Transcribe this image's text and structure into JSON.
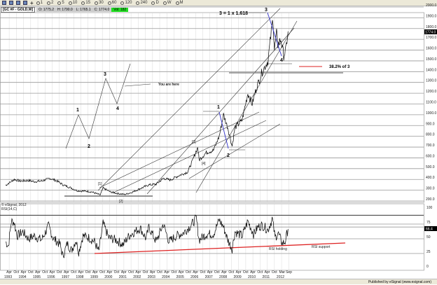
{
  "toolbar": {
    "intervals": [
      "1",
      "2",
      "5",
      "10",
      "15",
      "30",
      "60",
      "120",
      "240",
      "D",
      "W",
      "M"
    ]
  },
  "legend": {
    "symbol": "[GC #F - GOLD,W]",
    "open": "O: 1775.2",
    "high": "H: 1790.0",
    "low": "L: 1765.1",
    "close": "C: 1774.0",
    "volume": "Vol: 182"
  },
  "price_panel": {
    "last_price": "1774.0",
    "copyright": "© eSignal, 2012",
    "annotations": {
      "fib_label": "3 = 1 x 1.618",
      "w1": "1",
      "w2": "2",
      "w3": "3",
      "w4": "4",
      "retrace_label": "38.2% of 3",
      "s1": "[1]",
      "s2": "[2]",
      "s3": "[3]",
      "s4": "[4]",
      "inset_1": "1",
      "inset_2": "2",
      "inset_3": "3",
      "inset_4": "4",
      "you_are_here": "You are here"
    }
  },
  "rsi_panel": {
    "title": "RSI(14,C)",
    "last_value": "66.4",
    "holding_label": "RSI holding",
    "support_label": "RSI support"
  },
  "footer": {
    "text": "Published by eSignal (www.esignal.com)"
  },
  "colors": {
    "price": "#000000",
    "wave_segment": "#3333cc",
    "support_line": "#dd2222",
    "volume_badge": "#22dd22",
    "grid": "#b0b0b0"
  },
  "chart_data": [
    {
      "type": "line",
      "title": "GC #F - GOLD,W",
      "x_unit": "year",
      "ylim": [
        200,
        2000
      ],
      "y_ticks": [
        200,
        300,
        400,
        500,
        600,
        700,
        800,
        900,
        1000,
        1100,
        1200,
        1300,
        1400,
        1500,
        1600,
        1700,
        1800,
        1900,
        2000
      ],
      "y_tick_labels": [
        "200.0",
        "300.0",
        "400.0",
        "500.0",
        "600.0",
        "700.0",
        "800.0",
        "900.0",
        "1000.0",
        "1100.0",
        "1200.0",
        "1300.0",
        "1400.0",
        "1500.0",
        "1600.0",
        "1700.0",
        "1800.0",
        "1900.0",
        "2000.0"
      ],
      "grid": true,
      "points": [
        [
          1993.0,
          345
        ],
        [
          1993.6,
          400
        ],
        [
          1994.0,
          385
        ],
        [
          1994.6,
          390
        ],
        [
          1995.0,
          380
        ],
        [
          1995.5,
          385
        ],
        [
          1996.1,
          410
        ],
        [
          1996.6,
          385
        ],
        [
          1997.0,
          350
        ],
        [
          1997.5,
          325
        ],
        [
          1998.0,
          295
        ],
        [
          1998.7,
          290
        ],
        [
          1999.0,
          285
        ],
        [
          1999.6,
          255
        ],
        [
          1999.8,
          320
        ],
        [
          2000.3,
          285
        ],
        [
          2000.8,
          270
        ],
        [
          2001.3,
          260
        ],
        [
          2001.8,
          280
        ],
        [
          2002.4,
          315
        ],
        [
          2003.0,
          350
        ],
        [
          2003.5,
          355
        ],
        [
          2004.0,
          410
        ],
        [
          2004.5,
          395
        ],
        [
          2005.0,
          430
        ],
        [
          2005.7,
          470
        ],
        [
          2006.0,
          560
        ],
        [
          2006.4,
          700
        ],
        [
          2006.5,
          580
        ],
        [
          2007.0,
          650
        ],
        [
          2007.5,
          670
        ],
        [
          2007.9,
          800
        ],
        [
          2008.2,
          1000
        ],
        [
          2008.5,
          880
        ],
        [
          2008.8,
          710
        ],
        [
          2009.0,
          880
        ],
        [
          2009.5,
          950
        ],
        [
          2009.9,
          1200
        ],
        [
          2010.2,
          1100
        ],
        [
          2010.5,
          1250
        ],
        [
          2010.9,
          1400
        ],
        [
          2011.3,
          1500
        ],
        [
          2011.65,
          1900
        ],
        [
          2011.75,
          1600
        ],
        [
          2011.9,
          1750
        ],
        [
          2012.0,
          1650
        ],
        [
          2012.2,
          1700
        ],
        [
          2012.4,
          1550
        ],
        [
          2012.55,
          1600
        ],
        [
          2012.7,
          1774
        ]
      ]
    },
    {
      "type": "line",
      "title": "RSI(14,C)",
      "x_unit": "year",
      "ylim": [
        0,
        100
      ],
      "y_ticks": [
        0,
        25,
        50,
        75,
        100
      ],
      "y_tick_labels": [
        "0",
        "25",
        "50",
        "75",
        "100"
      ],
      "x_ticks": {
        "years": [
          "1993",
          "1994",
          "1995",
          "1996",
          "1997",
          "1998",
          "1999",
          "2000",
          "2001",
          "2002",
          "2003",
          "2004",
          "2005",
          "2006",
          "2007",
          "2008",
          "2009",
          "2010",
          "2011",
          "2012"
        ],
        "months": [
          "Apr",
          "Oct",
          "Apr",
          "Oct",
          "Apr",
          "Oct",
          "Apr",
          "Oct",
          "Apr",
          "Oct",
          "Apr",
          "Oct",
          "Apr",
          "Oct",
          "Apr",
          "Oct",
          "Apr",
          "Oct",
          "Apr",
          "Oct",
          "Apr",
          "Oct",
          "Apr",
          "Oct",
          "Apr",
          "Oct",
          "Apr",
          "Oct",
          "Apr",
          "Oct",
          "Apr",
          "Oct",
          "Apr",
          "Oct",
          "Apr",
          "Oct",
          "Apr",
          "Oct",
          "Mar",
          "Sep"
        ]
      },
      "points": [
        [
          1993.0,
          45
        ],
        [
          1993.2,
          38
        ],
        [
          1993.4,
          80
        ],
        [
          1993.6,
          78
        ],
        [
          1993.8,
          55
        ],
        [
          1994.2,
          62
        ],
        [
          1994.6,
          50
        ],
        [
          1995.0,
          55
        ],
        [
          1995.5,
          48
        ],
        [
          1996.0,
          72
        ],
        [
          1996.3,
          52
        ],
        [
          1996.8,
          40
        ],
        [
          1997.0,
          20
        ],
        [
          1997.3,
          42
        ],
        [
          1997.6,
          30
        ],
        [
          1997.9,
          48
        ],
        [
          1998.1,
          28
        ],
        [
          1998.4,
          55
        ],
        [
          1998.8,
          52
        ],
        [
          1999.2,
          45
        ],
        [
          1999.5,
          28
        ],
        [
          1999.8,
          76
        ],
        [
          2000.2,
          52
        ],
        [
          2000.7,
          48
        ],
        [
          2001.2,
          40
        ],
        [
          2001.6,
          55
        ],
        [
          2002.0,
          62
        ],
        [
          2002.4,
          68
        ],
        [
          2002.8,
          50
        ],
        [
          2003.0,
          70
        ],
        [
          2003.5,
          45
        ],
        [
          2004.0,
          75
        ],
        [
          2004.4,
          45
        ],
        [
          2004.9,
          55
        ],
        [
          2005.4,
          60
        ],
        [
          2005.9,
          72
        ],
        [
          2006.3,
          85
        ],
        [
          2006.5,
          48
        ],
        [
          2007.0,
          58
        ],
        [
          2007.5,
          58
        ],
        [
          2007.9,
          82
        ],
        [
          2008.2,
          70
        ],
        [
          2008.5,
          48
        ],
        [
          2008.8,
          33
        ],
        [
          2009.0,
          62
        ],
        [
          2009.5,
          55
        ],
        [
          2009.9,
          80
        ],
        [
          2010.3,
          58
        ],
        [
          2010.6,
          70
        ],
        [
          2010.9,
          73
        ],
        [
          2011.3,
          65
        ],
        [
          2011.6,
          84
        ],
        [
          2011.8,
          52
        ],
        [
          2012.0,
          60
        ],
        [
          2012.3,
          42
        ],
        [
          2012.5,
          45
        ],
        [
          2012.7,
          66.4
        ]
      ]
    }
  ]
}
